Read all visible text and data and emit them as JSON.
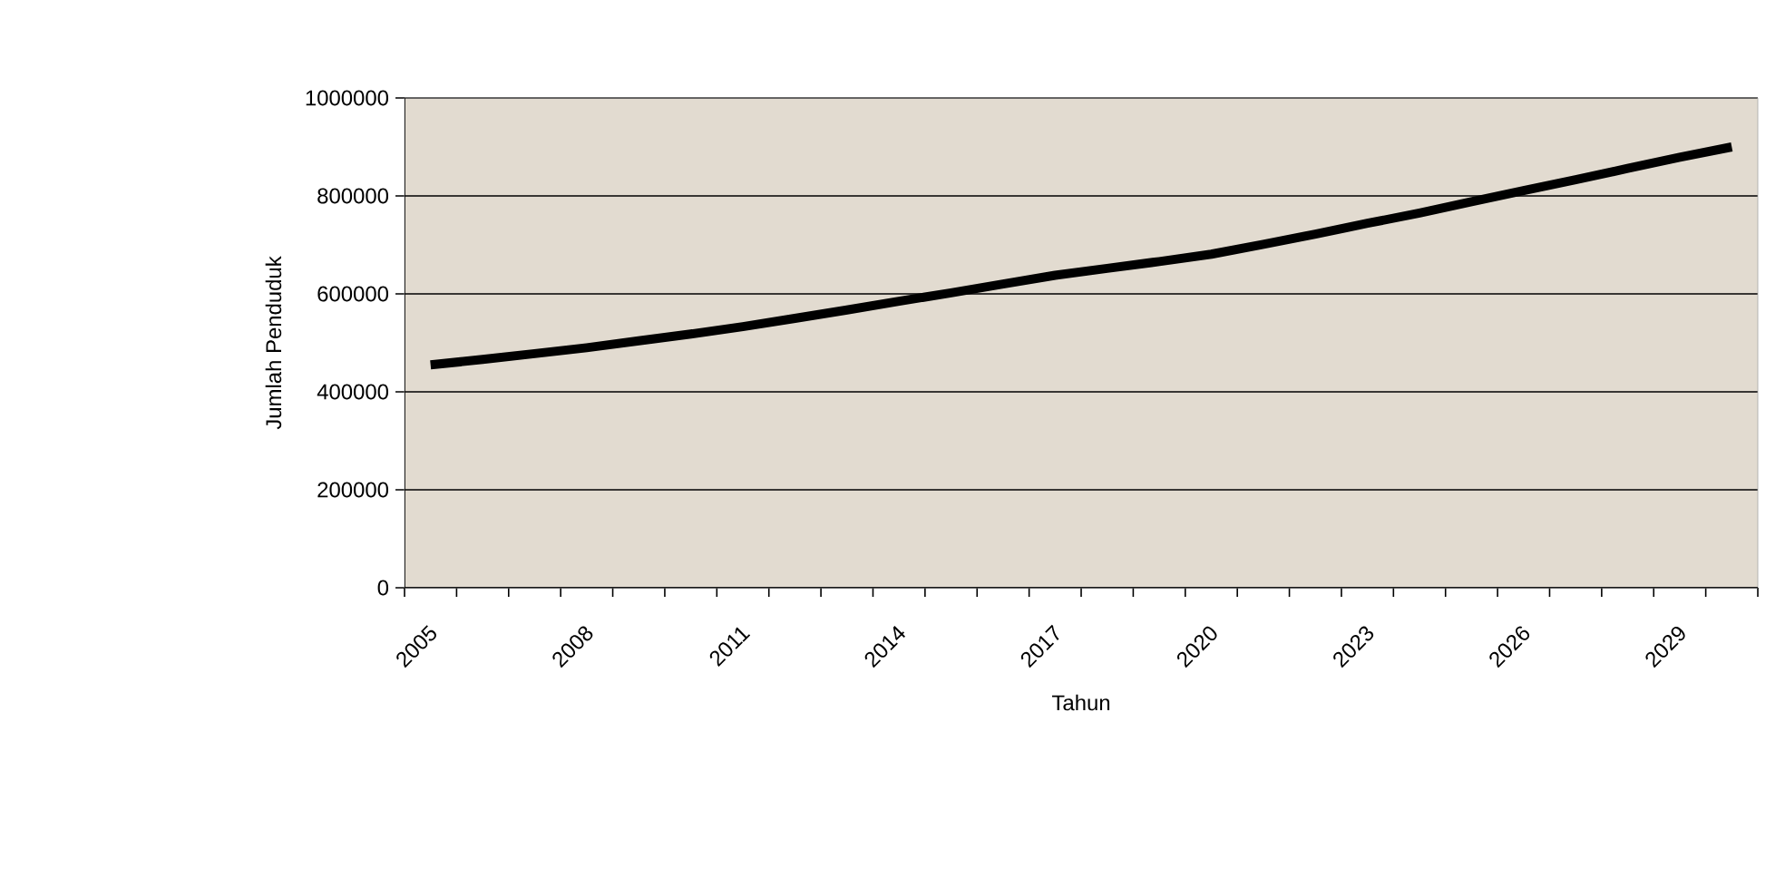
{
  "chart_data": {
    "type": "line",
    "xlabel": "Tahun",
    "ylabel": "Jumlah Penduduk",
    "categories": [
      "2005",
      null,
      null,
      "2008",
      null,
      null,
      "2011",
      null,
      null,
      "2014",
      null,
      null,
      "2017",
      null,
      null,
      "2020",
      null,
      null,
      "2023",
      null,
      null,
      "2026",
      null,
      null,
      "2029",
      null
    ],
    "series": [
      {
        "color": "#000000",
        "values": [
          455000,
          466000,
          478000,
          490000,
          504000,
          518000,
          533000,
          550000,
          567000,
          585000,
          602000,
          620000,
          638000,
          652000,
          666000,
          681000,
          701000,
          722000,
          744000,
          765000,
          788000,
          811000,
          833000,
          856000,
          879000,
          900000
        ]
      }
    ],
    "ylim": [
      0,
      1000000
    ],
    "yticks": [
      0,
      200000,
      400000,
      600000,
      800000,
      1000000
    ],
    "grid": "y",
    "marker": "none",
    "line_style": "solid"
  }
}
